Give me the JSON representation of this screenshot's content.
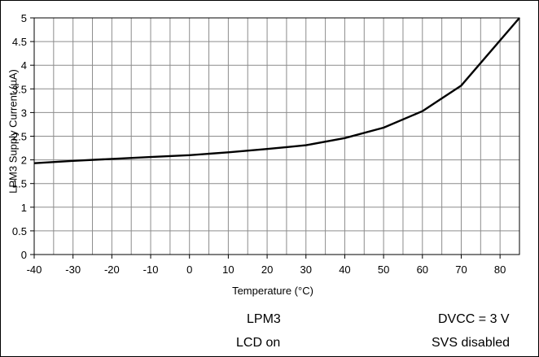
{
  "chart_data": {
    "type": "line",
    "xlabel": "Temperature (°C)",
    "ylabel": "LPM3 Supply Current (µA)",
    "xlim": [
      -40,
      85
    ],
    "ylim": [
      0,
      5
    ],
    "x_ticks": [
      "-40",
      "-30",
      "-20",
      "-10",
      "0",
      "10",
      "20",
      "30",
      "40",
      "50",
      "60",
      "70",
      "80"
    ],
    "y_ticks": [
      "0",
      "0.5",
      "1",
      "1.5",
      "2",
      "2.5",
      "3",
      "3.5",
      "4",
      "4.5",
      "5"
    ],
    "grid": true,
    "series": [
      {
        "x": [
          -40,
          -30,
          -20,
          -10,
          0,
          10,
          20,
          25,
          30,
          40,
          50,
          60,
          70,
          85
        ],
        "y": [
          1.93,
          1.98,
          2.02,
          2.06,
          2.1,
          2.16,
          2.23,
          2.27,
          2.31,
          2.46,
          2.68,
          3.03,
          3.57,
          5.0
        ],
        "color": "#000000"
      }
    ]
  },
  "notes": {
    "mode": "LPM3",
    "lcd": "LCD on",
    "dvcc": "DVCC = 3 V",
    "svs": "SVS disabled"
  }
}
